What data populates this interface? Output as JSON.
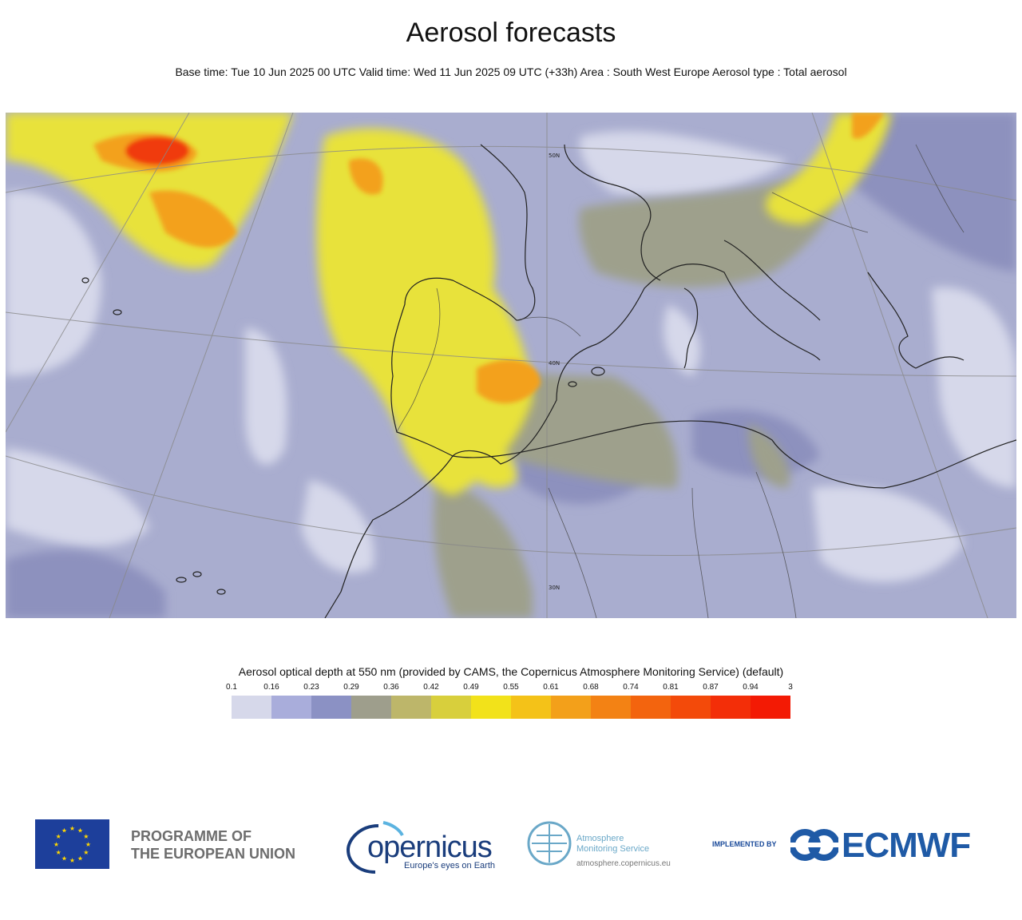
{
  "header": {
    "title": "Aerosol forecasts",
    "subtitle": "Base time: Tue 10 Jun 2025 00 UTC Valid time: Wed 11 Jun 2025 09 UTC (+33h) Area : South West Europe Aerosol type : Total aerosol"
  },
  "map": {
    "lat_labels": [
      "50N",
      "40N",
      "30N"
    ],
    "colors": {
      "background": "#a9adcf",
      "low": "#d6d8ea",
      "mid": "#8d91be",
      "olive": "#9ea08c",
      "yellow": "#e8e23a",
      "orange": "#f3a11c",
      "red": "#f03a0a",
      "coast": "#222222"
    }
  },
  "legend": {
    "title": "Aerosol optical depth at 550 nm (provided by CAMS, the Copernicus Atmosphere Monitoring Service) (default)",
    "ticks": [
      "0.1",
      "0.16",
      "0.23",
      "0.29",
      "0.36",
      "0.42",
      "0.49",
      "0.55",
      "0.61",
      "0.68",
      "0.74",
      "0.81",
      "0.87",
      "0.94",
      "3"
    ],
    "colors": [
      "#d6d8ea",
      "#a9addb",
      "#8b91c4",
      "#9e9e8c",
      "#bdb66a",
      "#d8cf3c",
      "#f2e21a",
      "#f4c218",
      "#f3a01a",
      "#f38214",
      "#f3640e",
      "#f34a0a",
      "#f32e08",
      "#f31a04"
    ]
  },
  "footer": {
    "eu_line1": "PROGRAMME OF",
    "eu_line2": "THE EUROPEAN UNION",
    "copernicus_name": "opernicus",
    "copernicus_tagline": "Europe's eyes on Earth",
    "ams_line1": "Atmosphere",
    "ams_line2": "Monitoring Service",
    "ams_url": "atmosphere.copernicus.eu",
    "implemented_by": "IMPLEMENTED BY",
    "ecmwf": "ECMWF"
  }
}
